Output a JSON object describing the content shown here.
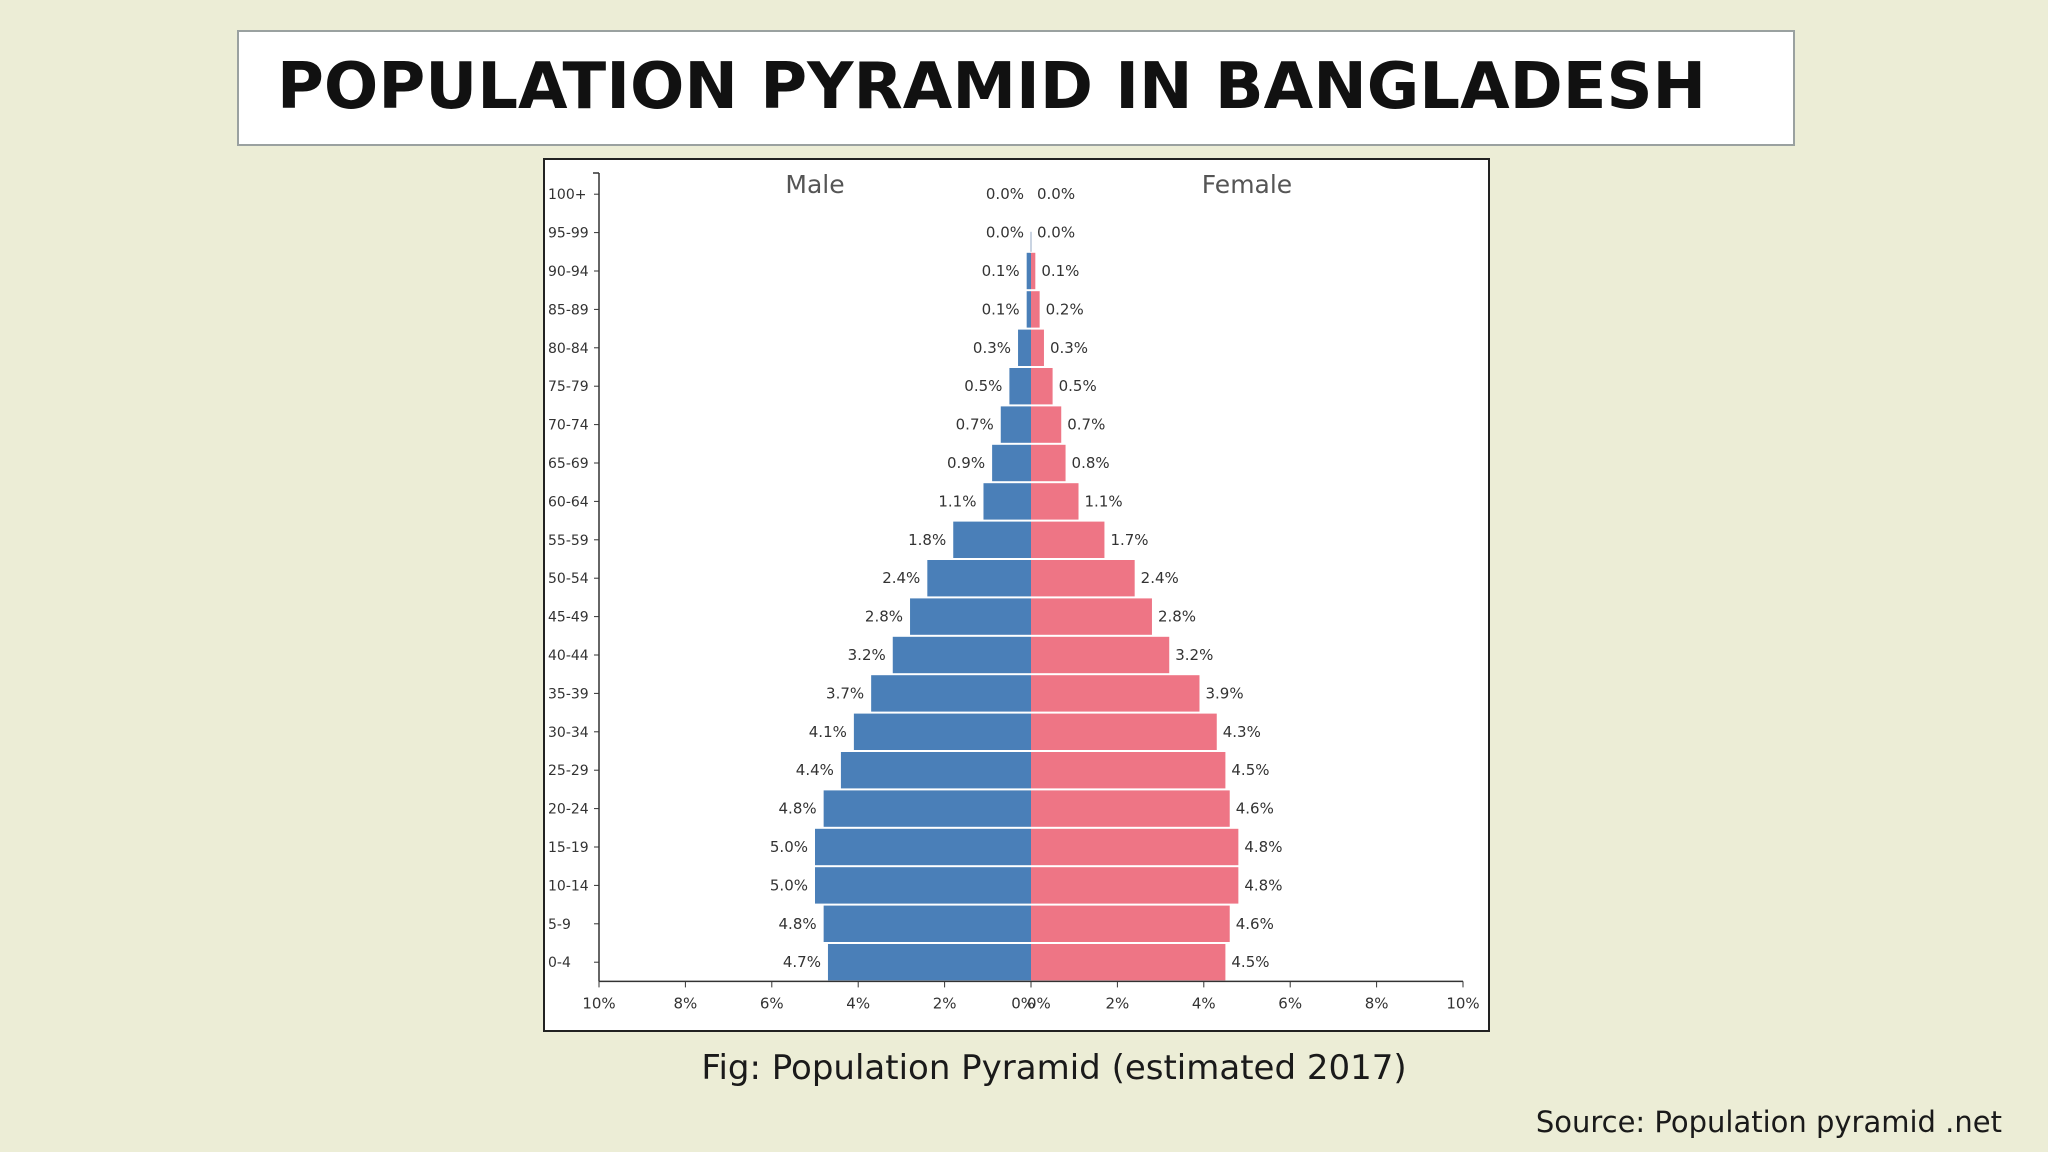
{
  "title": "POPULATION PYRAMID IN BANGLADESH",
  "caption": "Fig: Population Pyramid (estimated 2017)",
  "source": "Source: Population pyramid .net",
  "chart_data": {
    "type": "bar",
    "orientation": "horizontal-pyramid",
    "title": "",
    "categories": [
      "100+",
      "95-99",
      "90-94",
      "85-89",
      "80-84",
      "75-79",
      "70-74",
      "65-69",
      "60-64",
      "55-59",
      "50-54",
      "45-49",
      "40-44",
      "35-39",
      "30-34",
      "25-29",
      "20-24",
      "15-19",
      "10-14",
      "5-9",
      "0-4"
    ],
    "series": [
      {
        "name": "Male",
        "color": "#4a7fb8",
        "values": [
          0.0,
          0.0,
          0.1,
          0.1,
          0.3,
          0.5,
          0.7,
          0.9,
          1.1,
          1.8,
          2.4,
          2.8,
          3.2,
          3.7,
          4.1,
          4.4,
          4.8,
          5.0,
          5.0,
          4.8,
          4.7
        ],
        "labels": [
          "0.0%",
          "0.0%",
          "0.1%",
          "0.1%",
          "0.3%",
          "0.5%",
          "0.7%",
          "0.9%",
          "1.1%",
          "1.8%",
          "2.4%",
          "2.8%",
          "3.2%",
          "3.7%",
          "4.1%",
          "4.4%",
          "4.8%",
          "5.0%",
          "5.0%",
          "4.8%",
          "4.7%"
        ]
      },
      {
        "name": "Female",
        "color": "#ee7585",
        "values": [
          0.0,
          0.0,
          0.1,
          0.2,
          0.3,
          0.5,
          0.7,
          0.8,
          1.1,
          1.7,
          2.4,
          2.8,
          3.2,
          3.9,
          4.3,
          4.5,
          4.6,
          4.8,
          4.8,
          4.6,
          4.5
        ],
        "labels": [
          "0.0%",
          "0.0%",
          "0.1%",
          "0.2%",
          "0.3%",
          "0.5%",
          "0.7%",
          "0.8%",
          "1.1%",
          "1.7%",
          "2.4%",
          "2.8%",
          "3.2%",
          "3.9%",
          "4.3%",
          "4.5%",
          "4.6%",
          "4.8%",
          "4.8%",
          "4.6%",
          "4.5%"
        ]
      }
    ],
    "xlim": [
      -10,
      10
    ],
    "x_ticks": [
      "10%",
      "8%",
      "6%",
      "4%",
      "2%",
      "0%",
      "0%",
      "2%",
      "4%",
      "6%",
      "8%",
      "10%"
    ],
    "grid": false,
    "legend_placement": "top, above each side"
  }
}
